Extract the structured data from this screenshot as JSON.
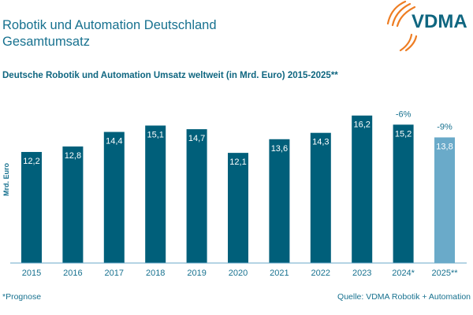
{
  "header": {
    "title_line1": "Robotik und Automation Deutschland",
    "title_line2": "Gesamtumsatz",
    "logo_text": "VDMA"
  },
  "footer": {
    "note": "*Prognose",
    "source": "Quelle: VDMA Robotik + Automation"
  },
  "colors": {
    "actual": "#005f7a",
    "forecast": "#6aaac9",
    "text": "#17718f",
    "logo_orange": "#ee7d23"
  },
  "chart_data": {
    "type": "bar",
    "title": "Deutsche Robotik und Automation Umsatz weltweit (in Mrd. Euro) 2015-2025**",
    "ylabel": "Mrd. Euro",
    "xlabel": "",
    "categories": [
      "2015",
      "2016",
      "2017",
      "2018",
      "2019",
      "2020",
      "2021",
      "2022",
      "2023",
      "2024*",
      "2025**"
    ],
    "values": [
      12.2,
      12.8,
      14.4,
      15.1,
      14.7,
      12.1,
      13.6,
      14.3,
      16.2,
      15.2,
      13.8
    ],
    "value_labels": [
      "12,2",
      "12,8",
      "14,4",
      "15,1",
      "14,7",
      "12,1",
      "13,6",
      "14,3",
      "16,2",
      "15,2",
      "13,8"
    ],
    "forecast_flags": [
      false,
      false,
      false,
      false,
      false,
      false,
      false,
      false,
      false,
      false,
      true
    ],
    "annotations": [
      {
        "category": "2024*",
        "text": "-6%"
      },
      {
        "category": "2025**",
        "text": "-9%"
      }
    ],
    "ylim": [
      0,
      18
    ],
    "grid": false,
    "legend": "none"
  }
}
